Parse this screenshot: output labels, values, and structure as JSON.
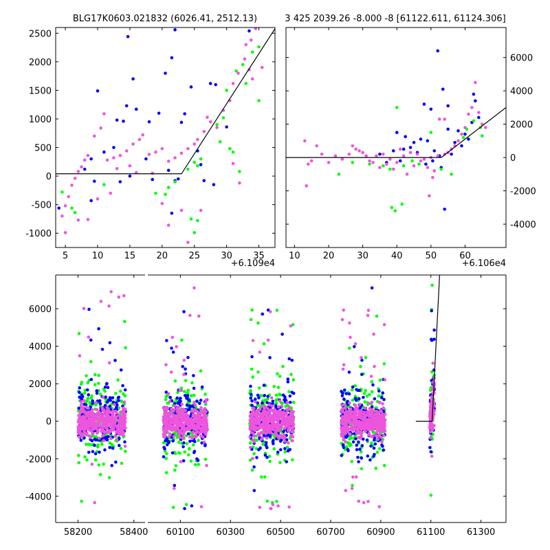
{
  "colors": {
    "blue": "#0000ff",
    "green": "#00ff00",
    "magenta": "#ee55dd",
    "model": "#000000"
  },
  "chart_data": [
    {
      "panel": "top-left",
      "type": "scatter",
      "title": "BLG17K0603.021832 (6026.41, 2512.13)",
      "x_offset_label": "+6.109e4",
      "xlim": [
        3.5,
        37.5
      ],
      "ylim": [
        -1250,
        2600
      ],
      "xticks": [
        5,
        10,
        15,
        20,
        25,
        30,
        35
      ],
      "yticks": [
        -1000,
        -500,
        0,
        500,
        1000,
        1500,
        2000,
        2500
      ],
      "y_axis_side": "left",
      "model_line": [
        [
          3.5,
          40
        ],
        [
          23.0,
          40
        ],
        [
          37.5,
          2580
        ]
      ],
      "series": [
        {
          "name": "blue",
          "color": "#0000ff",
          "points": [
            [
              14.7,
              2440
            ],
            [
              22.0,
              2560
            ],
            [
              33.5,
              2540
            ],
            [
              21.5,
              2070
            ],
            [
              20.5,
              1800
            ],
            [
              15.5,
              1700
            ],
            [
              10.0,
              1490
            ],
            [
              24.5,
              1560
            ],
            [
              27.5,
              1620
            ],
            [
              28.3,
              1600
            ],
            [
              14.5,
              1230
            ],
            [
              16.0,
              1170
            ],
            [
              19.5,
              1100
            ],
            [
              23.5,
              1090
            ],
            [
              13.0,
              980
            ],
            [
              14.0,
              960
            ],
            [
              18.0,
              950
            ],
            [
              23.0,
              940
            ],
            [
              30.0,
              860
            ],
            [
              25.5,
              440
            ],
            [
              11.0,
              420
            ],
            [
              9.0,
              300
            ],
            [
              12.5,
              500
            ],
            [
              17.5,
              300
            ],
            [
              26.0,
              200
            ],
            [
              8.0,
              120
            ],
            [
              21.0,
              100
            ],
            [
              22.5,
              -50
            ],
            [
              9.5,
              -90
            ],
            [
              13.5,
              -100
            ],
            [
              18.5,
              -60
            ],
            [
              26.5,
              -80
            ],
            [
              28.0,
              -150
            ],
            [
              4.0,
              -560
            ],
            [
              9.0,
              -430
            ],
            [
              21.5,
              -650
            ],
            [
              22.0,
              -80
            ],
            [
              15.0,
              0
            ]
          ]
        },
        {
          "name": "green",
          "color": "#00ff00",
          "points": [
            [
              35.0,
              2260
            ],
            [
              34.0,
              2170
            ],
            [
              32.5,
              1950
            ],
            [
              31.5,
              1840
            ],
            [
              33.0,
              1620
            ],
            [
              30.0,
              1500
            ],
            [
              29.5,
              1020
            ],
            [
              28.5,
              900
            ],
            [
              29.0,
              600
            ],
            [
              30.5,
              480
            ],
            [
              31.0,
              420
            ],
            [
              26.0,
              300
            ],
            [
              25.0,
              240
            ],
            [
              25.5,
              180
            ],
            [
              24.0,
              120
            ],
            [
              22.0,
              -100
            ],
            [
              21.0,
              -200
            ],
            [
              20.5,
              -320
            ],
            [
              4.5,
              -280
            ],
            [
              6.0,
              -560
            ],
            [
              6.5,
              -640
            ],
            [
              24.5,
              -750
            ],
            [
              25.5,
              -780
            ],
            [
              25.0,
              -990
            ],
            [
              35.0,
              1320
            ],
            [
              32.0,
              80
            ],
            [
              11.0,
              -150
            ],
            [
              19.0,
              -300
            ]
          ]
        },
        {
          "name": "magenta",
          "color": "#ee55dd",
          "points": [
            [
              34.5,
              2580
            ],
            [
              33.8,
              2380
            ],
            [
              33.0,
              2300
            ],
            [
              32.8,
              2050
            ],
            [
              31.8,
              1800
            ],
            [
              31.0,
              1620
            ],
            [
              30.5,
              1320
            ],
            [
              29.5,
              1150
            ],
            [
              27.0,
              1030
            ],
            [
              27.5,
              950
            ],
            [
              28.5,
              850
            ],
            [
              26.5,
              780
            ],
            [
              25.5,
              640
            ],
            [
              25.0,
              560
            ],
            [
              24.0,
              480
            ],
            [
              23.0,
              400
            ],
            [
              22.0,
              320
            ],
            [
              21.0,
              260
            ],
            [
              20.0,
              480
            ],
            [
              19.0,
              420
            ],
            [
              18.0,
              380
            ],
            [
              17.0,
              720
            ],
            [
              16.5,
              640
            ],
            [
              15.5,
              560
            ],
            [
              14.5,
              440
            ],
            [
              13.5,
              360
            ],
            [
              12.5,
              320
            ],
            [
              11.5,
              280
            ],
            [
              11.0,
              1090
            ],
            [
              10.5,
              840
            ],
            [
              9.5,
              700
            ],
            [
              8.5,
              360
            ],
            [
              8.0,
              280
            ],
            [
              7.5,
              160
            ],
            [
              7.0,
              80
            ],
            [
              6.5,
              -40
            ],
            [
              6.0,
              -160
            ],
            [
              5.5,
              -360
            ],
            [
              5.0,
              -520
            ],
            [
              4.5,
              -700
            ],
            [
              5.0,
              -990
            ],
            [
              7.0,
              -770
            ],
            [
              8.5,
              -760
            ],
            [
              10.0,
              -400
            ],
            [
              12.0,
              -300
            ],
            [
              20.0,
              -480
            ],
            [
              21.0,
              -860
            ],
            [
              23.0,
              -600
            ],
            [
              24.0,
              -1160
            ],
            [
              26.0,
              -600
            ],
            [
              31.0,
              220
            ],
            [
              32.0,
              -120
            ],
            [
              33.5,
              1860
            ],
            [
              35.5,
              1900
            ],
            [
              34.0,
              1700
            ],
            [
              13.0,
              130
            ],
            [
              15.0,
              180
            ],
            [
              18.5,
              50
            ],
            [
              16.0,
              60
            ]
          ]
        }
      ]
    },
    {
      "panel": "top-right",
      "type": "scatter",
      "title": "3 425 2039.26 -8.000 -8 [61122.611, 61124.306]",
      "x_offset_label": "+6.106e4",
      "xlim": [
        7.5,
        72
      ],
      "ylim": [
        -5400,
        7800
      ],
      "xticks": [
        10,
        20,
        30,
        40,
        50,
        60
      ],
      "yticks": [
        -4000,
        -2000,
        0,
        2000,
        4000,
        6000
      ],
      "y_axis_side": "right",
      "model_line": [
        [
          7.5,
          0
        ],
        [
          53.0,
          0
        ],
        [
          72,
          3000
        ]
      ],
      "series": [
        {
          "name": "blue",
          "color": "#0000ff",
          "points": [
            [
              52.0,
              6400
            ],
            [
              53.5,
              4100
            ],
            [
              48.0,
              3200
            ],
            [
              55.0,
              3100
            ],
            [
              50.0,
              2900
            ],
            [
              62.5,
              3800
            ],
            [
              63.0,
              3400
            ],
            [
              40.0,
              1500
            ],
            [
              42.5,
              1250
            ],
            [
              47.0,
              1100
            ],
            [
              49.0,
              1000
            ],
            [
              45.0,
              900
            ],
            [
              55.0,
              1700
            ],
            [
              58.0,
              1600
            ],
            [
              60.0,
              1400
            ],
            [
              62.0,
              2100
            ],
            [
              64.0,
              2400
            ],
            [
              61.0,
              1100
            ],
            [
              57.0,
              900
            ],
            [
              53.0,
              -600
            ],
            [
              51.0,
              400
            ],
            [
              46.0,
              300
            ],
            [
              44.0,
              600
            ],
            [
              42.0,
              500
            ],
            [
              39.0,
              400
            ],
            [
              37.0,
              -300
            ],
            [
              35.0,
              200
            ],
            [
              54.0,
              -3100
            ],
            [
              48.5,
              -400
            ],
            [
              50.5,
              -200
            ],
            [
              56.0,
              200
            ],
            [
              59.0,
              700
            ],
            [
              52.5,
              100
            ],
            [
              41.0,
              -200
            ]
          ]
        },
        {
          "name": "green",
          "color": "#00ff00",
          "points": [
            [
              40.0,
              3000
            ],
            [
              39.5,
              -3200
            ],
            [
              38.5,
              -3000
            ],
            [
              41.5,
              -2800
            ],
            [
              36.0,
              -500
            ],
            [
              38.0,
              -700
            ],
            [
              44.5,
              -200
            ],
            [
              46.5,
              -400
            ],
            [
              53.0,
              -700
            ],
            [
              56.0,
              -1000
            ],
            [
              60.5,
              1700
            ],
            [
              62.5,
              2200
            ],
            [
              65.0,
              1300
            ],
            [
              64.5,
              1800
            ],
            [
              59.5,
              1200
            ],
            [
              50.0,
              1500
            ],
            [
              23.0,
              -1000
            ],
            [
              27.0,
              -300
            ],
            [
              32.0,
              -400
            ],
            [
              42.0,
              -500
            ]
          ]
        },
        {
          "name": "magenta",
          "color": "#ee55dd",
          "points": [
            [
              63.0,
              4500
            ],
            [
              62.0,
              3000
            ],
            [
              61.0,
              2600
            ],
            [
              60.0,
              1800
            ],
            [
              59.0,
              1400
            ],
            [
              58.0,
              1000
            ],
            [
              57.0,
              700
            ],
            [
              56.0,
              500
            ],
            [
              55.0,
              300
            ],
            [
              54.0,
              200
            ],
            [
              52.0,
              100
            ],
            [
              50.0,
              0
            ],
            [
              48.0,
              -100
            ],
            [
              46.0,
              200
            ],
            [
              44.0,
              300
            ],
            [
              42.0,
              100
            ],
            [
              40.0,
              -300
            ],
            [
              38.0,
              -100
            ],
            [
              36.0,
              200
            ],
            [
              34.0,
              100
            ],
            [
              32.0,
              -200
            ],
            [
              30.0,
              300
            ],
            [
              28.0,
              500
            ],
            [
              26.0,
              200
            ],
            [
              24.0,
              -100
            ],
            [
              22.0,
              100
            ],
            [
              20.0,
              -300
            ],
            [
              18.0,
              200
            ],
            [
              16.5,
              700
            ],
            [
              15.0,
              -200
            ],
            [
              14.0,
              -400
            ],
            [
              13.0,
              1000
            ],
            [
              13.5,
              -1700
            ],
            [
              27.0,
              700
            ],
            [
              29.0,
              400
            ],
            [
              31.0,
              100
            ],
            [
              33.0,
              -300
            ],
            [
              35.0,
              -600
            ],
            [
              37.0,
              -400
            ],
            [
              39.0,
              -700
            ],
            [
              41.0,
              500
            ],
            [
              43.0,
              -1000
            ],
            [
              45.0,
              -500
            ],
            [
              47.0,
              -200
            ],
            [
              49.0,
              -600
            ],
            [
              51.0,
              -800
            ],
            [
              49.5,
              -2300
            ],
            [
              50.5,
              -1200
            ],
            [
              52.5,
              2300
            ],
            [
              54.0,
              2300
            ],
            [
              65.0,
              2000
            ],
            [
              66.0,
              1800
            ],
            [
              64.0,
              2700
            ]
          ]
        }
      ]
    },
    {
      "panel": "bottom",
      "type": "scatter",
      "title": "",
      "ylim": [
        -5400,
        7800
      ],
      "yticks": [
        -4000,
        -2000,
        0,
        2000,
        4000,
        6000
      ],
      "segments": [
        {
          "xlim": [
            58120,
            58440
          ],
          "xticks": [
            58200,
            58400
          ]
        },
        {
          "xlim": [
            59970,
            61400
          ],
          "xticks": [
            60100,
            60300,
            60500,
            60700,
            60900,
            61100,
            61300
          ]
        }
      ],
      "clusters": [
        {
          "center": 58285,
          "width": 170
        },
        {
          "center": 60120,
          "width": 175
        },
        {
          "center": 60465,
          "width": 175
        },
        {
          "center": 60830,
          "width": 175
        },
        {
          "center": 61105,
          "width": 18
        }
      ],
      "model_line": [
        [
          61040,
          0
        ],
        [
          61105,
          0
        ],
        [
          61135,
          7800
        ]
      ]
    }
  ]
}
